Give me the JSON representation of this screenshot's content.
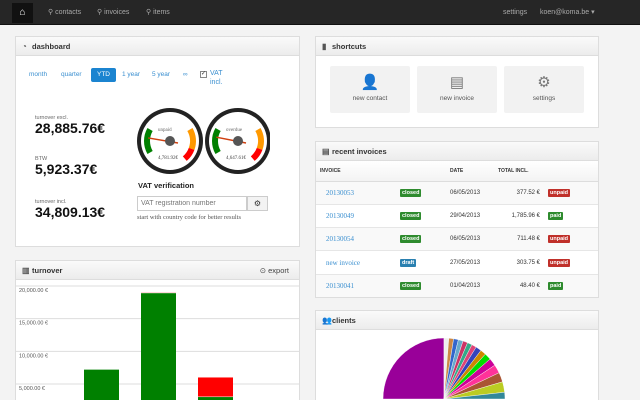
{
  "nav": {
    "home_icon": "home-icon",
    "contacts": "contacts",
    "invoices": "invoices",
    "items": "items",
    "settings": "settings",
    "user": "koen@koma.be"
  },
  "dashboard": {
    "title": "dashboard",
    "periods": [
      "month",
      "quarter",
      "YTD",
      "1 year",
      "5 year",
      "∞"
    ],
    "active_period": "YTD",
    "vat_label": "VAT",
    "vat_label2": "incl.",
    "vat_checked": true,
    "turnover_excl_label": "turnover excl.",
    "turnover_excl": "28,885.76€",
    "btw_label": "BTW",
    "btw": "5,923.37€",
    "turnover_incl_label": "turnover incl.",
    "turnover_incl": "34,809.13€",
    "gauges": [
      {
        "label": "unpaid",
        "value": "4,781.92€"
      },
      {
        "label": "overdue",
        "value": "4,647.61€"
      }
    ],
    "vat_title": "VAT verification",
    "vat_placeholder": "VAT registration number",
    "vat_hint": "start with country code for better results"
  },
  "shortcuts": {
    "title": "shortcuts",
    "items": [
      {
        "label": "new contact",
        "icon": "user-icon"
      },
      {
        "label": "new invoice",
        "icon": "invoice-icon"
      },
      {
        "label": "settings",
        "icon": "gears-icon"
      }
    ]
  },
  "invoices": {
    "title": "recent invoices",
    "headers": [
      "INVOICE",
      "",
      "DATE",
      "TOTAL INCL.",
      ""
    ],
    "rows": [
      {
        "number": "20130053",
        "state": "closed",
        "date": "06/05/2013",
        "total": "377.52 €",
        "payment": "unpaid"
      },
      {
        "number": "20130049",
        "state": "closed",
        "date": "29/04/2013",
        "total": "1,785.96 €",
        "payment": "paid"
      },
      {
        "number": "20130054",
        "state": "closed",
        "date": "06/05/2013",
        "total": "711.48 €",
        "payment": "unpaid"
      },
      {
        "number": "new invoice",
        "state": "draft",
        "date": "27/05/2013",
        "total": "303.75 €",
        "payment": "unpaid"
      },
      {
        "number": "20130041",
        "state": "closed",
        "date": "01/04/2013",
        "total": "48.40 €",
        "payment": "paid"
      }
    ]
  },
  "colors": {
    "closed": "#2e8b2e",
    "draft": "#2a80b0",
    "unpaid": "#c0302a",
    "paid": "#2e8b2e",
    "accent": "#1b84d0"
  },
  "turnover": {
    "title": "turnover",
    "export": "export"
  },
  "clients": {
    "title": "clients"
  },
  "chart_data": [
    {
      "type": "bar",
      "stacked": true,
      "ytick_labels": [
        "20,000.00 €",
        "15,000.00 €",
        "10,000.00 €",
        "5,000.00 €"
      ],
      "yticks": [
        20000,
        15000,
        10000,
        5000
      ],
      "ylim": [
        0,
        20000
      ],
      "grid": true,
      "series": [
        {
          "color": "#008000",
          "values": [
            7200,
            18900,
            3000
          ]
        },
        {
          "color": "#ff0000",
          "values": [
            0,
            100,
            3000
          ]
        }
      ]
    },
    {
      "type": "pie",
      "values": [
        50,
        1,
        1,
        1,
        1,
        1,
        1,
        1,
        1.2,
        1.2,
        1.4,
        1.6,
        1.8,
        2,
        2.2,
        2.4,
        2.6,
        2.8,
        3
      ],
      "colors": [
        "#990099",
        "#eeeeee",
        "#cc8844",
        "#3366cc",
        "#66aacc",
        "#cc3366",
        "#33aa88",
        "#dd4477",
        "#3344bb",
        "#cc8800",
        "#00dd00",
        "#cc0099",
        "#ff3399",
        "#aa5533",
        "#bbcc22",
        "#338899",
        "#669922",
        "#ccaa00",
        "#116622"
      ]
    }
  ]
}
